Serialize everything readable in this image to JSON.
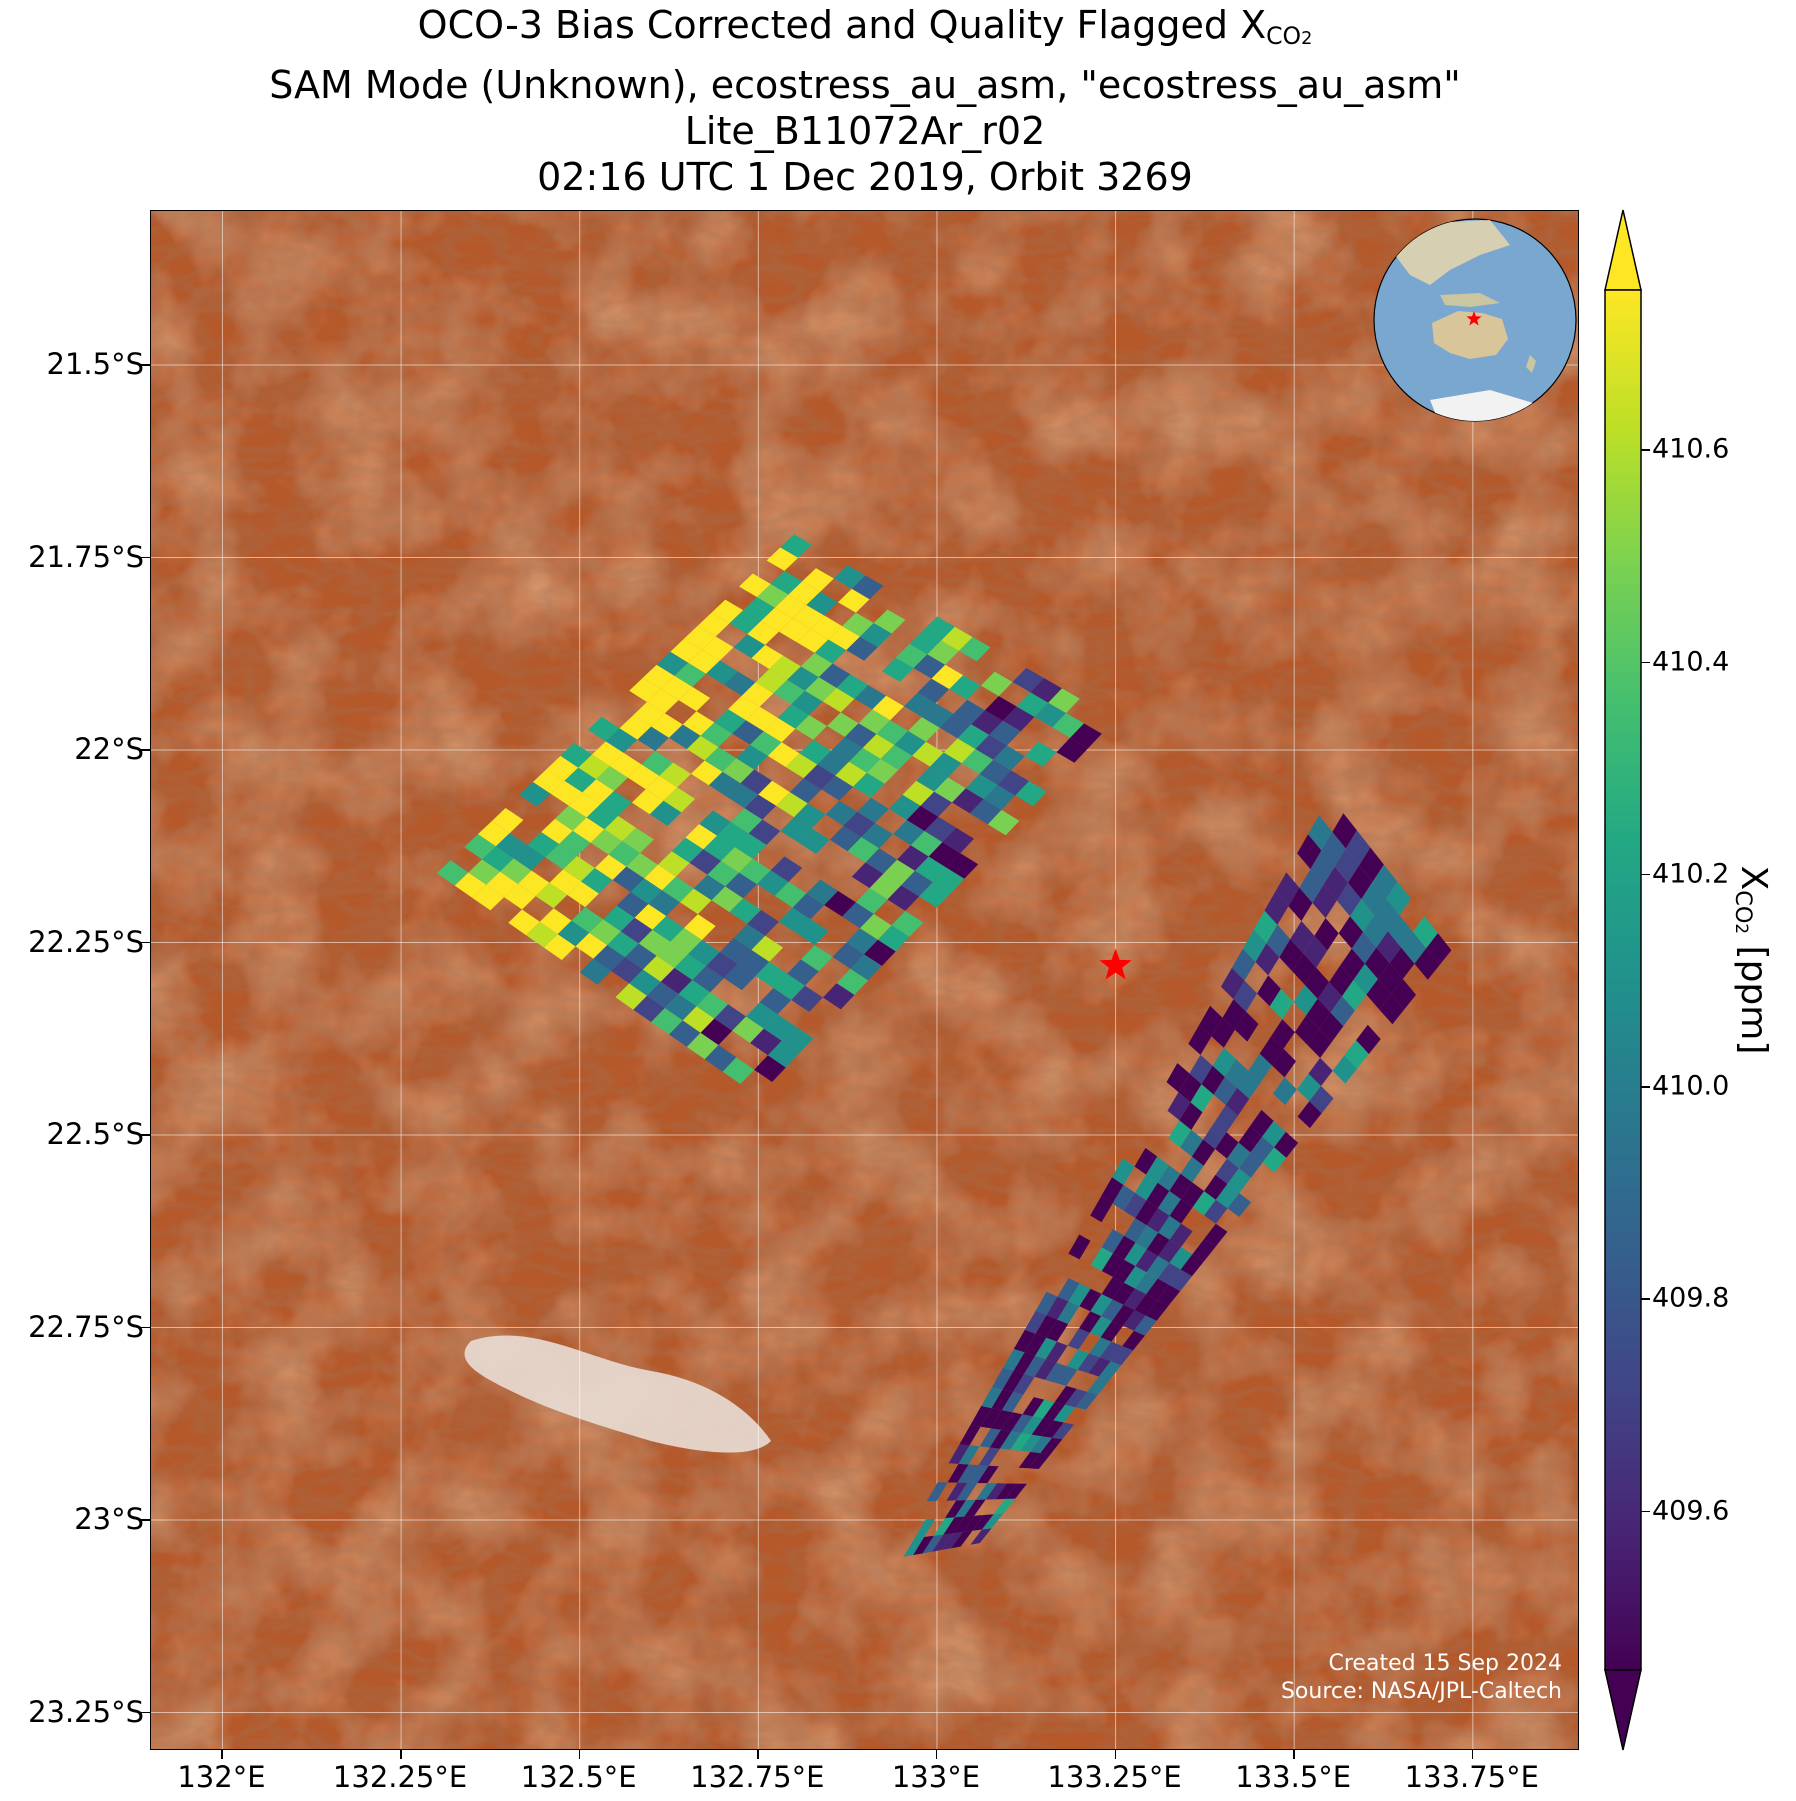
{
  "title": {
    "line1_prefix": "OCO-3 Bias Corrected and Quality Flagged X",
    "line1_sub": "CO",
    "line1_sub2": "2",
    "line2": "SAM Mode (Unknown), ecostress_au_asm, \"ecostress_au_asm\"",
    "line3": "Lite_B11072Ar_r02",
    "line4": "02:16 UTC 1 Dec 2019, Orbit 3269"
  },
  "map": {
    "lon_range": [
      131.9,
      133.9
    ],
    "lat_range": [
      -23.3,
      -21.3
    ],
    "target": {
      "lon": 133.25,
      "lat": -22.28,
      "marker": "red-star",
      "color": "#ff0000"
    },
    "grid": true,
    "y_ticks": [
      {
        "lat": -21.5,
        "label": "21.5°S"
      },
      {
        "lat": -21.75,
        "label": "21.75°S"
      },
      {
        "lat": -22.0,
        "label": "22°S"
      },
      {
        "lat": -22.25,
        "label": "22.25°S"
      },
      {
        "lat": -22.5,
        "label": "22.5°S"
      },
      {
        "lat": -22.75,
        "label": "22.75°S"
      },
      {
        "lat": -23.0,
        "label": "23°S"
      },
      {
        "lat": -23.25,
        "label": "23.25°S"
      }
    ],
    "x_ticks": [
      {
        "lon": 132.0,
        "label": "132°E"
      },
      {
        "lon": 132.25,
        "label": "132.25°E"
      },
      {
        "lon": 132.5,
        "label": "132.5°E"
      },
      {
        "lon": 132.75,
        "label": "132.75°E"
      },
      {
        "lon": 133.0,
        "label": "133°E"
      },
      {
        "lon": 133.25,
        "label": "133.25°E"
      },
      {
        "lon": 133.5,
        "label": "133.5°E"
      },
      {
        "lon": 133.75,
        "label": "133.75°E"
      }
    ],
    "swaths": [
      {
        "name": "northwest",
        "corners": [
          [
            132.3,
            -22.16
          ],
          [
            132.8,
            -21.72
          ],
          [
            133.25,
            -21.96
          ],
          [
            132.75,
            -22.45
          ]
        ]
      },
      {
        "name": "southeast",
        "corners": [
          [
            132.94,
            -23.05
          ],
          [
            133.55,
            -22.06
          ],
          [
            133.72,
            -22.26
          ],
          [
            133.06,
            -23.03
          ]
        ]
      }
    ],
    "background": "satellite-desert"
  },
  "colorbar": {
    "vmin": 409.45,
    "vmax": 410.75,
    "colormap": "viridis",
    "extend": "both",
    "ticks": [
      {
        "value": 409.6,
        "label": "409.6"
      },
      {
        "value": 409.8,
        "label": "409.8"
      },
      {
        "value": 410.0,
        "label": "410.0"
      },
      {
        "value": 410.2,
        "label": "410.2"
      },
      {
        "value": 410.4,
        "label": "410.4"
      },
      {
        "value": 410.6,
        "label": "410.6"
      }
    ],
    "label_prefix": "X",
    "label_sub": "CO",
    "label_sub2": "2",
    "label_suffix": " [ppm]"
  },
  "inset_globe": {
    "center": "Australia",
    "marker": "red-star"
  },
  "credits": {
    "created": "Created 15 Sep 2024",
    "source": "Source: NASA/JPL-Caltech"
  }
}
